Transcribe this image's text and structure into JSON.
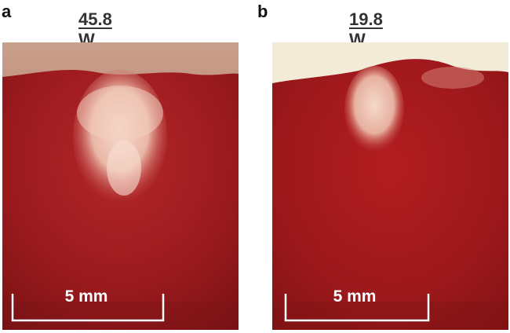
{
  "panels": [
    {
      "letter": "a",
      "power": "45.8 W",
      "scale_bar": "5 mm"
    },
    {
      "letter": "b",
      "power": "19.8 W",
      "scale_bar": "5 mm"
    }
  ],
  "colors": {
    "tissue": "#9e1a1c",
    "tissue_dark": "#7a1214",
    "lesion": "#f3cfc0",
    "background_a": "#d9b8a5",
    "background_b": "#f3ecd9",
    "scale_bar": "#ffffff"
  }
}
